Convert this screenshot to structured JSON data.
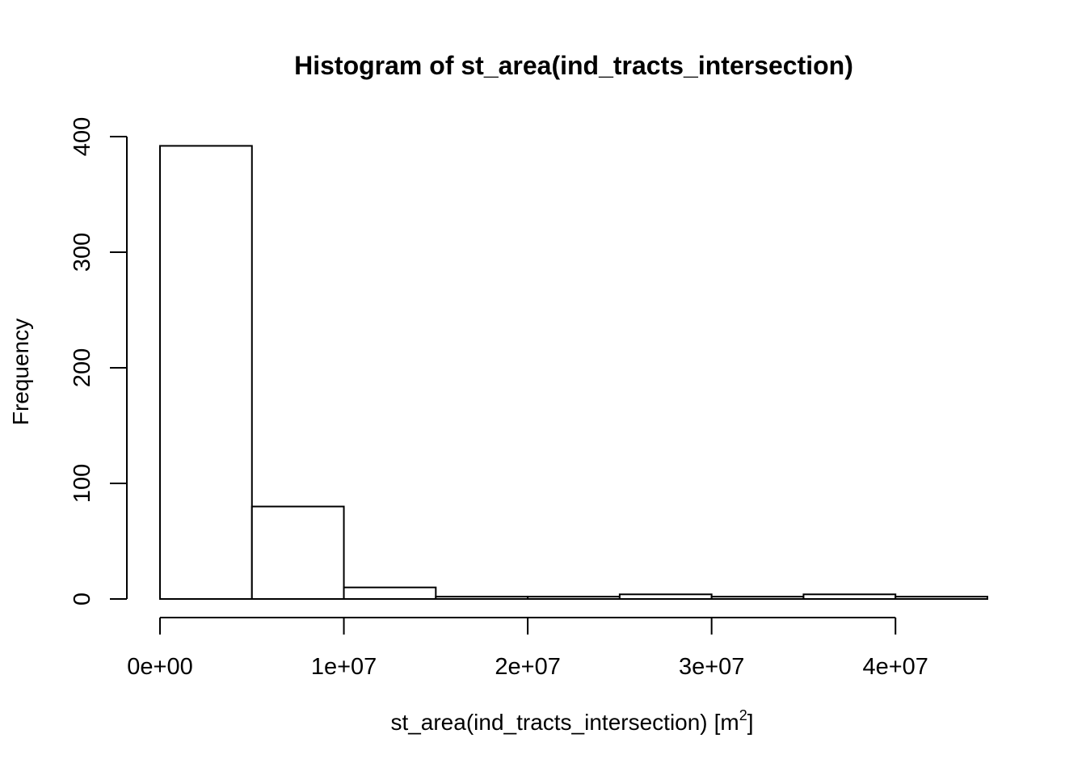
{
  "chart_data": {
    "type": "bar",
    "title": "Histogram of st_area(ind_tracts_intersection)",
    "xlabel": {
      "main": "st_area(ind_tracts_intersection)",
      "unit_prefix": "[m",
      "unit_sup": "2",
      "unit_suffix": "]"
    },
    "ylabel": "Frequency",
    "bins": [
      {
        "from": 0,
        "to": 5000000,
        "count": 392
      },
      {
        "from": 5000000,
        "to": 10000000,
        "count": 80
      },
      {
        "from": 10000000,
        "to": 15000000,
        "count": 10
      },
      {
        "from": 15000000,
        "to": 20000000,
        "count": 2
      },
      {
        "from": 20000000,
        "to": 25000000,
        "count": 2
      },
      {
        "from": 25000000,
        "to": 30000000,
        "count": 4
      },
      {
        "from": 30000000,
        "to": 35000000,
        "count": 2
      },
      {
        "from": 35000000,
        "to": 40000000,
        "count": 4
      },
      {
        "from": 40000000,
        "to": 45000000,
        "count": 2
      }
    ],
    "xlim": [
      0,
      45000000
    ],
    "ylim": [
      0,
      400
    ],
    "xticks": [
      {
        "value": 0,
        "label": "0e+00"
      },
      {
        "value": 10000000,
        "label": "1e+07"
      },
      {
        "value": 20000000,
        "label": "2e+07"
      },
      {
        "value": 30000000,
        "label": "3e+07"
      },
      {
        "value": 40000000,
        "label": "4e+07"
      }
    ],
    "yticks": [
      {
        "value": 0,
        "label": "0"
      },
      {
        "value": 100,
        "label": "100"
      },
      {
        "value": 200,
        "label": "200"
      },
      {
        "value": 300,
        "label": "300"
      },
      {
        "value": 400,
        "label": "400"
      }
    ],
    "grid": false,
    "legend": "none"
  }
}
